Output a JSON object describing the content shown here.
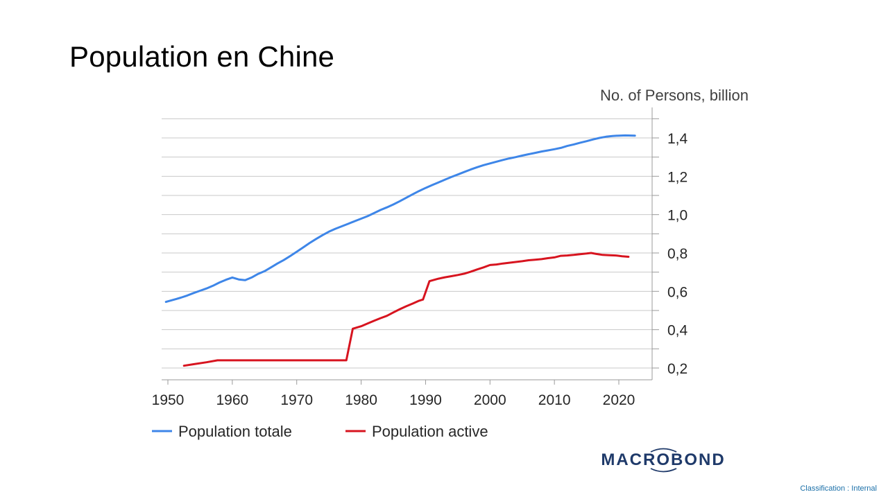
{
  "slide": {
    "title": "Population en Chine",
    "classification": "Classification : Internal",
    "logo_text": "MACROBOND"
  },
  "chart_data": {
    "type": "line",
    "title": "",
    "unit_label": "No. of Persons, billion",
    "xlabel": "",
    "ylabel": "No. of Persons, billion",
    "xlim": [
      1949,
      2025
    ],
    "ylim": [
      0.15,
      1.55
    ],
    "x_ticks": [
      1950,
      1960,
      1970,
      1980,
      1990,
      2000,
      2010,
      2020
    ],
    "y_ticks": [
      {
        "value": 0.2,
        "label": "0,2"
      },
      {
        "value": 0.4,
        "label": "0,4"
      },
      {
        "value": 0.6,
        "label": "0,6"
      },
      {
        "value": 0.8,
        "label": "0,8"
      },
      {
        "value": 1.0,
        "label": "1,0"
      },
      {
        "value": 1.2,
        "label": "1,2"
      },
      {
        "value": 1.4,
        "label": "1,4"
      }
    ],
    "gridlines": [
      0.2,
      0.3,
      0.4,
      0.5,
      0.6,
      0.7,
      0.8,
      0.9,
      1.0,
      1.1,
      1.2,
      1.3,
      1.4,
      1.5
    ],
    "grid": true,
    "y_axis_side": "right",
    "legend_position": "bottom",
    "series": [
      {
        "name": "Population totale",
        "color": "#3e86e8",
        "x": [
          1949.7,
          1951,
          1952,
          1953,
          1954,
          1955,
          1956,
          1957,
          1958,
          1959,
          1960,
          1961,
          1962,
          1963,
          1964,
          1965,
          1966,
          1967,
          1968,
          1969,
          1970,
          1971,
          1972,
          1973,
          1974,
          1975,
          1976,
          1977,
          1978,
          1979,
          1980,
          1981,
          1982,
          1983,
          1984,
          1985,
          1986,
          1987,
          1988,
          1989,
          1990,
          1991,
          1992,
          1993,
          1994,
          1995,
          1996,
          1997,
          1998,
          1999,
          2000,
          2001,
          2002,
          2003,
          2004,
          2005,
          2006,
          2007,
          2008,
          2009,
          2010,
          2011,
          2012,
          2013,
          2014,
          2015,
          2016,
          2017,
          2018,
          2019,
          2020,
          2021,
          2022.5
        ],
        "values": [
          0.545,
          0.557,
          0.567,
          0.578,
          0.591,
          0.603,
          0.615,
          0.629,
          0.646,
          0.66,
          0.672,
          0.662,
          0.658,
          0.672,
          0.691,
          0.705,
          0.725,
          0.745,
          0.763,
          0.784,
          0.806,
          0.829,
          0.852,
          0.873,
          0.893,
          0.911,
          0.926,
          0.939,
          0.952,
          0.966,
          0.979,
          0.992,
          1.008,
          1.024,
          1.038,
          1.053,
          1.07,
          1.088,
          1.106,
          1.123,
          1.139,
          1.154,
          1.168,
          1.182,
          1.196,
          1.209,
          1.222,
          1.235,
          1.247,
          1.258,
          1.267,
          1.276,
          1.285,
          1.293,
          1.3,
          1.308,
          1.315,
          1.322,
          1.329,
          1.335,
          1.341,
          1.348,
          1.358,
          1.366,
          1.375,
          1.383,
          1.392,
          1.4,
          1.406,
          1.41,
          1.412,
          1.413,
          1.412
        ]
      },
      {
        "name": "Population active",
        "color": "#d7141f",
        "x": [
          1952.5,
          1954,
          1956,
          1957.7,
          1960,
          1965,
          1970,
          1975,
          1977.7,
          1978.7,
          1980,
          1981,
          1982,
          1983,
          1984,
          1985,
          1986,
          1987,
          1988,
          1989,
          1989.6,
          1990.6,
          1992,
          1993,
          1994,
          1995,
          1996,
          1997,
          1998,
          1999,
          2000,
          2001,
          2002,
          2003,
          2004,
          2005,
          2006,
          2007,
          2008,
          2009,
          2010,
          2011,
          2012,
          2013,
          2014,
          2015,
          2015.7,
          2016.5,
          2017.5,
          2018.5,
          2019.5,
          2020.5,
          2021.5
        ],
        "values": [
          0.212,
          0.22,
          0.23,
          0.24,
          0.24,
          0.24,
          0.24,
          0.24,
          0.24,
          0.405,
          0.418,
          0.432,
          0.446,
          0.46,
          0.472,
          0.49,
          0.507,
          0.522,
          0.536,
          0.551,
          0.557,
          0.653,
          0.666,
          0.673,
          0.679,
          0.685,
          0.692,
          0.702,
          0.714,
          0.725,
          0.737,
          0.74,
          0.745,
          0.749,
          0.753,
          0.757,
          0.762,
          0.765,
          0.768,
          0.773,
          0.777,
          0.785,
          0.787,
          0.79,
          0.794,
          0.797,
          0.8,
          0.795,
          0.79,
          0.788,
          0.787,
          0.783,
          0.78
        ]
      }
    ]
  }
}
